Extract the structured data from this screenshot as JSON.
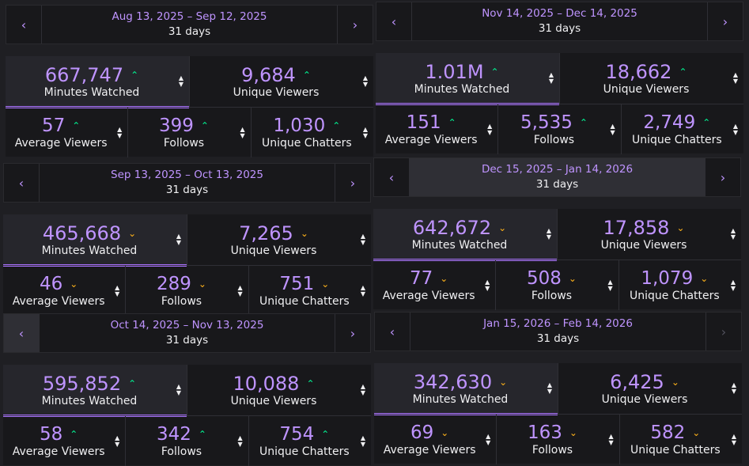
{
  "panels": [
    {
      "range": "Aug 13, 2025 – Sep 12, 2025",
      "days": "31 days",
      "minutes": "667,747",
      "minutes_label": "Minutes Watched",
      "minutes_trend": "up",
      "unique": "9,684",
      "unique_label": "Unique Viewers",
      "unique_trend": "up",
      "avg": "57",
      "avg_label": "Average Viewers",
      "avg_trend": "up",
      "follows": "399",
      "follows_label": "Follows",
      "follows_trend": "up",
      "chatters": "1,030",
      "chatters_label": "Unique Chatters",
      "chatters_trend": "up"
    },
    {
      "range": "Sep 13, 2025 – Oct 13, 2025",
      "days": "31 days",
      "minutes": "465,668",
      "minutes_label": "Minutes Watched",
      "minutes_trend": "down",
      "unique": "7,265",
      "unique_label": "Unique Viewers",
      "unique_trend": "down",
      "avg": "46",
      "avg_label": "Average Viewers",
      "avg_trend": "down",
      "follows": "289",
      "follows_label": "Follows",
      "follows_trend": "down",
      "chatters": "751",
      "chatters_label": "Unique Chatters",
      "chatters_trend": "down"
    },
    {
      "range": "Oct 14, 2025 – Nov 13, 2025",
      "days": "31 days",
      "minutes": "595,852",
      "minutes_label": "Minutes Watched",
      "minutes_trend": "up",
      "unique": "10,088",
      "unique_label": "Unique Viewers",
      "unique_trend": "up",
      "avg": "58",
      "avg_label": "Average Viewers",
      "avg_trend": "up",
      "follows": "342",
      "follows_label": "Follows",
      "follows_trend": "up",
      "chatters": "754",
      "chatters_label": "Unique Chatters",
      "chatters_trend": "up"
    },
    {
      "range": "Nov 14, 2025 – Dec 14, 2025",
      "days": "31 days",
      "minutes": "1.01M",
      "minutes_label": "Minutes Watched",
      "minutes_trend": "up",
      "unique": "18,662",
      "unique_label": "Unique Viewers",
      "unique_trend": "up",
      "avg": "151",
      "avg_label": "Average Viewers",
      "avg_trend": "up",
      "follows": "5,535",
      "follows_label": "Follows",
      "follows_trend": "up",
      "chatters": "2,749",
      "chatters_label": "Unique Chatters",
      "chatters_trend": "up"
    },
    {
      "range": "Dec 15, 2025 – Jan 14, 2026",
      "days": "31 days",
      "minutes": "642,672",
      "minutes_label": "Minutes Watched",
      "minutes_trend": "down",
      "unique": "17,858",
      "unique_label": "Unique Viewers",
      "unique_trend": "down",
      "avg": "77",
      "avg_label": "Average Viewers",
      "avg_trend": "down",
      "follows": "508",
      "follows_label": "Follows",
      "follows_trend": "down",
      "chatters": "1,079",
      "chatters_label": "Unique Chatters",
      "chatters_trend": "down"
    },
    {
      "range": "Jan 15, 2026 – Feb 14, 2026",
      "days": "31 days",
      "minutes": "342,630",
      "minutes_label": "Minutes Watched",
      "minutes_trend": "down",
      "unique": "6,425",
      "unique_label": "Unique Viewers",
      "unique_trend": "down",
      "avg": "69",
      "avg_label": "Average Viewers",
      "avg_trend": "down",
      "follows": "163",
      "follows_label": "Follows",
      "follows_trend": "down",
      "chatters": "582",
      "chatters_label": "Unique Chatters",
      "chatters_trend": "down"
    }
  ],
  "icons": {
    "prev": "chevron-left-icon",
    "next": "chevron-right-icon",
    "sort": "sort-icon",
    "trend_up": "caret-up-icon",
    "trend_down": "caret-down-icon"
  },
  "colors": {
    "accent": "#bf94ff",
    "up": "#00f593",
    "down": "#ffb31a",
    "selected_bar": "#a970ff"
  }
}
